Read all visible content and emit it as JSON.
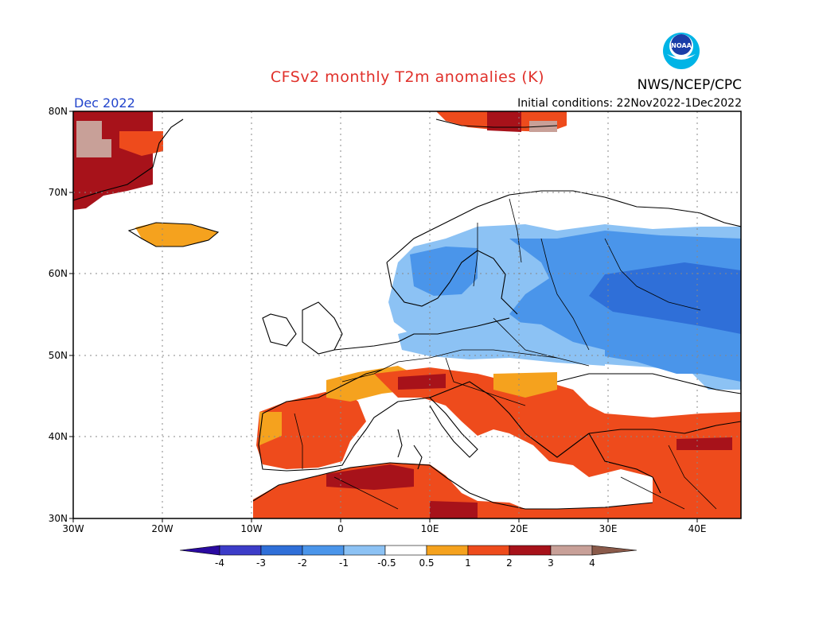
{
  "header": {
    "title": "CFSv2 monthly T2m anomalies (K)",
    "month": "Dec 2022",
    "agency": "NWS/NCEP/CPC",
    "initial_conditions": "Initial conditions: 22Nov2022-1Dec2022",
    "logo_text": "NOAA"
  },
  "axes": {
    "lon_ticks": [
      "30W",
      "20W",
      "10W",
      "0",
      "10E",
      "20E",
      "30E",
      "40E"
    ],
    "lat_ticks": [
      "80N",
      "70N",
      "60N",
      "50N",
      "40N",
      "30N"
    ],
    "lon_range": [
      -30,
      45
    ],
    "lat_range": [
      30,
      80
    ]
  },
  "colorbar": {
    "levels": [
      "-4",
      "-3",
      "-2",
      "-1",
      "-0.5",
      "0.5",
      "1",
      "2",
      "3",
      "4"
    ],
    "colors": {
      "below_-4": "#2a0aa0",
      "-4_-3": "#3c3cc8",
      "-3_-2": "#2f6fd8",
      "-2_-1": "#4a95ea",
      "-1_-0.5": "#8cc2f4",
      "-0.5_0.5": "#ffffff",
      "0.5_1": "#f5a21e",
      "1_2": "#ee4b1c",
      "2_3": "#a7121a",
      "3_4": "#c8a098",
      "above_4": "#8a5a4a"
    }
  },
  "map_regions": [
    {
      "name": "Greenland",
      "category": "2_3"
    },
    {
      "name": "Iceland",
      "category": "0.5_1"
    },
    {
      "name": "Svalbard",
      "category": "1_2"
    },
    {
      "name": "Scandinavia-Finland",
      "category": "-1_-0.5"
    },
    {
      "name": "Western Russia-Baltics",
      "category": "-2_-1"
    },
    {
      "name": "Central-Eastern Europe",
      "category": "-1_-0.5"
    },
    {
      "name": "Iberia",
      "category": "1_2"
    },
    {
      "name": "Italy-Balkans",
      "category": "1_2"
    },
    {
      "name": "Turkey-Middle East",
      "category": "1_2"
    },
    {
      "name": "North Africa",
      "category": "1_2"
    }
  ]
}
